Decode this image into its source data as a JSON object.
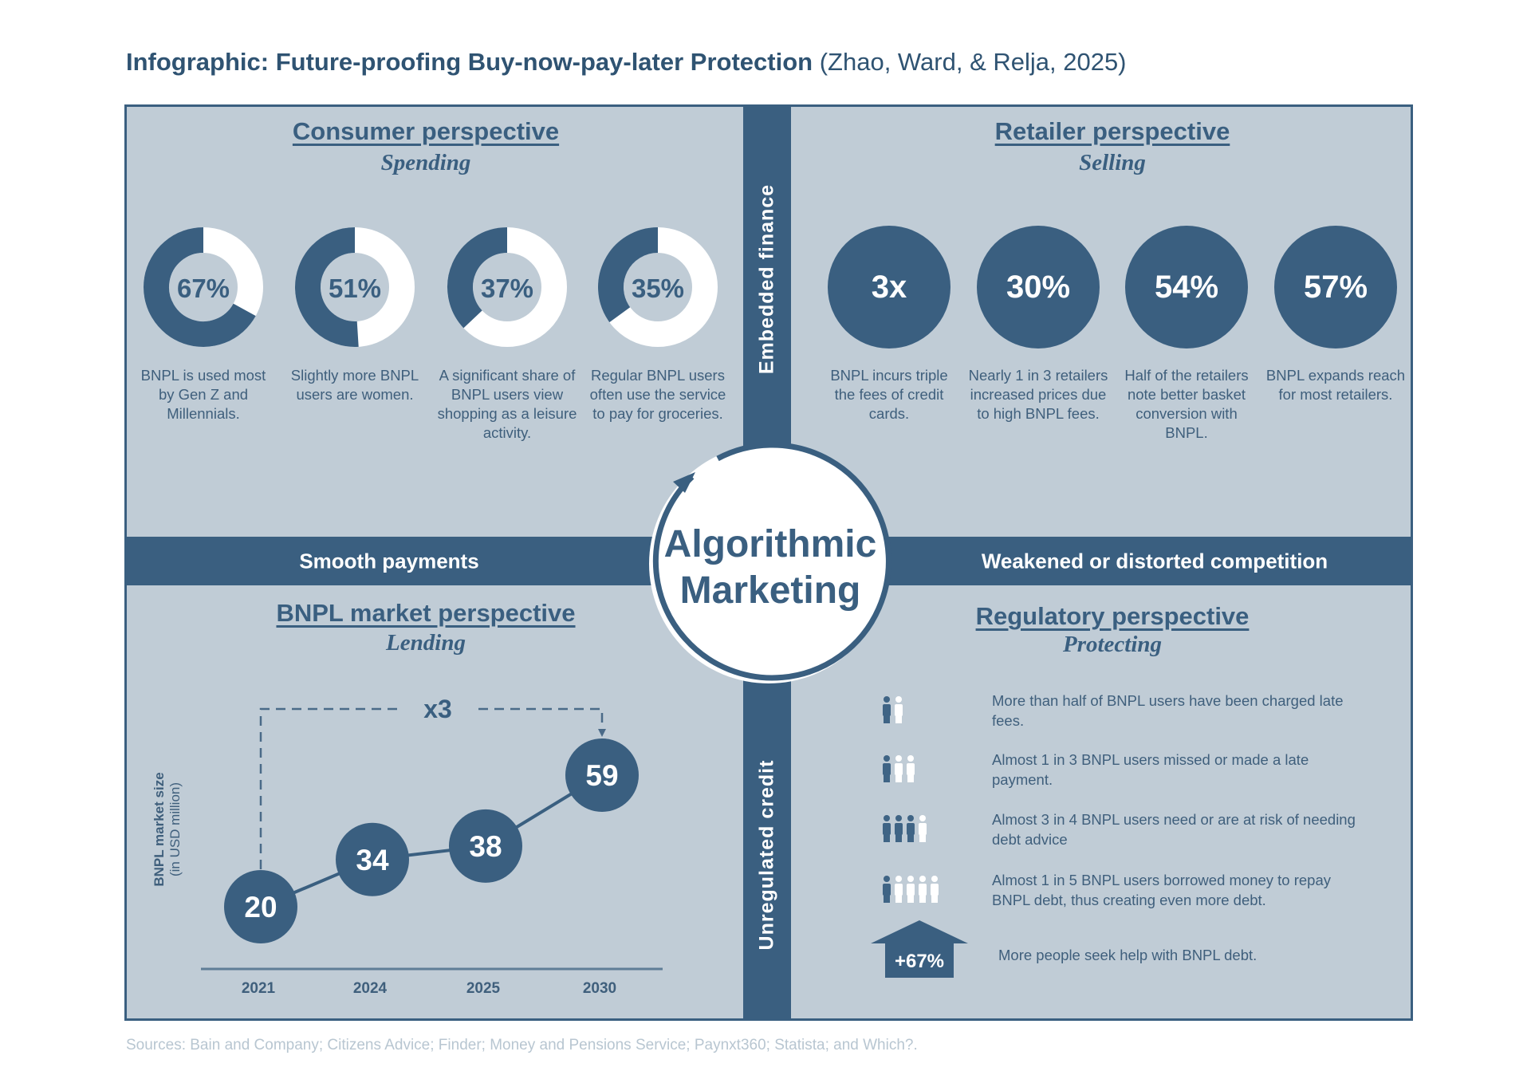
{
  "title": {
    "main": "Infographic: Future-proofing Buy-now-pay-later Protection",
    "citation": "(Zhao, Ward, & Relja, 2025)"
  },
  "colors": {
    "primary": "#3a5f80",
    "panel": "#c0ccd6",
    "white": "#ffffff",
    "source_text": "#b8c6d1"
  },
  "connectors": {
    "top": "Embedded finance",
    "bottom": "Unregulated credit",
    "left": "Smooth payments",
    "right": "Weakened or distorted competition"
  },
  "center": {
    "line1": "Algorithmic",
    "line2": "Marketing",
    "icon": "cycle-arrow-icon"
  },
  "consumer": {
    "heading": "Consumer perspective",
    "subheading": "Spending",
    "stats": [
      {
        "label": "67%",
        "value": 67,
        "text": "BNPL is used most by Gen Z and Millennials."
      },
      {
        "label": "51%",
        "value": 51,
        "text": "Slightly more BNPL users are women."
      },
      {
        "label": "37%",
        "value": 37,
        "text": "A significant share of BNPL users view shopping as a leisure activity."
      },
      {
        "label": "35%",
        "value": 35,
        "text": "Regular BNPL users often use the service to pay for groceries."
      }
    ]
  },
  "retailer": {
    "heading": "Retailer perspective",
    "subheading": "Selling",
    "stats": [
      {
        "label": "3x",
        "text": "BNPL incurs triple the fees of credit cards."
      },
      {
        "label": "30%",
        "text": "Nearly 1 in 3 retailers increased prices due to high BNPL fees."
      },
      {
        "label": "54%",
        "text": "Half of the retailers note better basket conversion with BNPL."
      },
      {
        "label": "57%",
        "text": "BNPL expands reach for most retailers."
      }
    ]
  },
  "market": {
    "heading": "BNPL market perspective",
    "subheading": "Lending",
    "growth_label": "x3"
  },
  "regulatory": {
    "heading": "Regulatory perspective",
    "subheading": "Protecting",
    "items": [
      {
        "icon": "people-1-of-2-icon",
        "highlighted": 1,
        "total": 2,
        "text": "More than half of BNPL users have been charged late fees."
      },
      {
        "icon": "people-1-of-3-icon",
        "highlighted": 1,
        "total": 3,
        "text": "Almost 1 in 3 BNPL users missed or made a late payment."
      },
      {
        "icon": "people-3-of-4-icon",
        "highlighted": 3,
        "total": 4,
        "text": "Almost 3 in 4 BNPL users need or are at risk of needing debt advice"
      },
      {
        "icon": "people-1-of-5-icon",
        "highlighted": 1,
        "total": 5,
        "text": "Almost 1 in 5 BNPL users borrowed money to repay BNPL debt, thus creating even more debt."
      }
    ],
    "increase": {
      "label": "+67%",
      "icon": "up-arrow-icon",
      "text": "More people seek help with BNPL debt."
    }
  },
  "chart_data": {
    "type": "line",
    "title": "BNPL market perspective",
    "ylabel": "BNPL market size",
    "ylabel_sub": "(in USD million)",
    "xlabel": "",
    "categories": [
      "2021",
      "2024",
      "2025",
      "2030"
    ],
    "values": [
      20,
      34,
      38,
      59
    ],
    "annotation": "x3",
    "grid": false
  },
  "sources": "Sources: Bain and Company; Citizens Advice; Finder; Money and Pensions Service; Paynxt360; Statista; and Which?."
}
